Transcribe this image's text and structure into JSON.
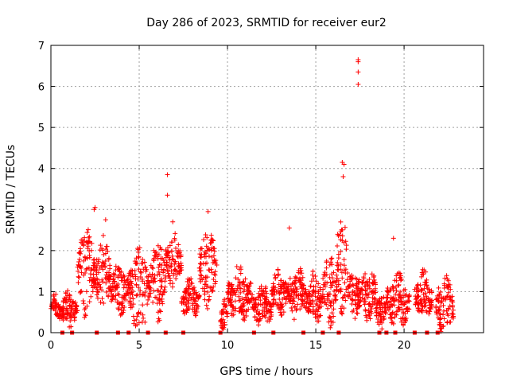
{
  "chart_data": {
    "type": "scatter",
    "title": "Day 286 of 2023, SRMTID for receiver eur2",
    "xlabel": "GPS time / hours",
    "ylabel": "SRMTID / TECUs",
    "xlim": [
      0,
      24.5
    ],
    "ylim": [
      0,
      7
    ],
    "xticks": [
      0,
      5,
      10,
      15,
      20
    ],
    "yticks": [
      0,
      1,
      2,
      3,
      4,
      5,
      6,
      7
    ],
    "grid": true,
    "marker": "+",
    "color": "#ff0000",
    "segments": [
      {
        "x0": 0.0,
        "x1": 0.6,
        "base": 0.6,
        "amp": 0.35
      },
      {
        "x0": 0.6,
        "x1": 1.5,
        "base": 0.5,
        "amp": 0.6
      },
      {
        "x0": 1.5,
        "x1": 2.5,
        "base": 1.4,
        "amp": 1.5
      },
      {
        "x0": 2.5,
        "x1": 3.4,
        "base": 1.4,
        "amp": 1.3
      },
      {
        "x0": 3.4,
        "x1": 4.4,
        "base": 1.0,
        "amp": 0.8
      },
      {
        "x0": 4.4,
        "x1": 5.6,
        "base": 1.0,
        "amp": 1.4
      },
      {
        "x0": 5.6,
        "x1": 6.5,
        "base": 1.2,
        "amp": 1.4
      },
      {
        "x0": 6.5,
        "x1": 7.4,
        "base": 1.7,
        "amp": 0.9
      },
      {
        "x0": 7.4,
        "x1": 8.4,
        "base": 0.8,
        "amp": 0.6
      },
      {
        "x0": 8.4,
        "x1": 9.4,
        "base": 1.5,
        "amp": 1.3
      },
      {
        "x0": 9.6,
        "x1": 10.0,
        "base": 0.4,
        "amp": 0.5
      },
      {
        "x0": 10.0,
        "x1": 11.4,
        "base": 0.9,
        "amp": 0.9
      },
      {
        "x0": 11.4,
        "x1": 12.5,
        "base": 0.6,
        "amp": 0.7
      },
      {
        "x0": 12.5,
        "x1": 13.4,
        "base": 0.9,
        "amp": 0.8
      },
      {
        "x0": 13.4,
        "x1": 14.5,
        "base": 0.9,
        "amp": 0.8
      },
      {
        "x0": 14.5,
        "x1": 15.4,
        "base": 0.8,
        "amp": 0.8
      },
      {
        "x0": 15.4,
        "x1": 16.2,
        "base": 1.0,
        "amp": 1.3
      },
      {
        "x0": 16.2,
        "x1": 16.8,
        "base": 1.6,
        "amp": 2.1
      },
      {
        "x0": 16.8,
        "x1": 17.6,
        "base": 0.9,
        "amp": 0.8
      },
      {
        "x0": 17.6,
        "x1": 18.4,
        "base": 0.9,
        "amp": 0.9
      },
      {
        "x0": 18.4,
        "x1": 19.0,
        "base": 0.5,
        "amp": 0.6
      },
      {
        "x0": 19.0,
        "x1": 20.3,
        "base": 0.7,
        "amp": 0.9
      },
      {
        "x0": 20.6,
        "x1": 21.6,
        "base": 0.9,
        "amp": 0.8
      },
      {
        "x0": 21.8,
        "x1": 22.8,
        "base": 0.6,
        "amp": 1.0
      }
    ],
    "outliers": [
      {
        "x": 6.6,
        "y": 3.85
      },
      {
        "x": 6.6,
        "y": 3.35
      },
      {
        "x": 17.4,
        "y": 6.65
      },
      {
        "x": 17.4,
        "y": 6.6
      },
      {
        "x": 17.4,
        "y": 6.35
      },
      {
        "x": 17.4,
        "y": 6.05
      },
      {
        "x": 16.5,
        "y": 4.15
      },
      {
        "x": 16.6,
        "y": 4.1
      },
      {
        "x": 16.55,
        "y": 3.8
      },
      {
        "x": 2.45,
        "y": 3.0
      },
      {
        "x": 2.5,
        "y": 3.05
      },
      {
        "x": 8.9,
        "y": 2.95
      },
      {
        "x": 13.5,
        "y": 2.55
      },
      {
        "x": 19.4,
        "y": 2.3
      },
      {
        "x": 3.1,
        "y": 2.75
      },
      {
        "x": 6.9,
        "y": 2.7
      }
    ],
    "gaps_at_zero": [
      0.65,
      1.2,
      2.6,
      3.8,
      4.4,
      5.5,
      6.5,
      7.5,
      9.6,
      11.5,
      12.6,
      14.3,
      15.4,
      16.3,
      18.6,
      19.0,
      19.5,
      20.6,
      21.3,
      21.9
    ]
  }
}
